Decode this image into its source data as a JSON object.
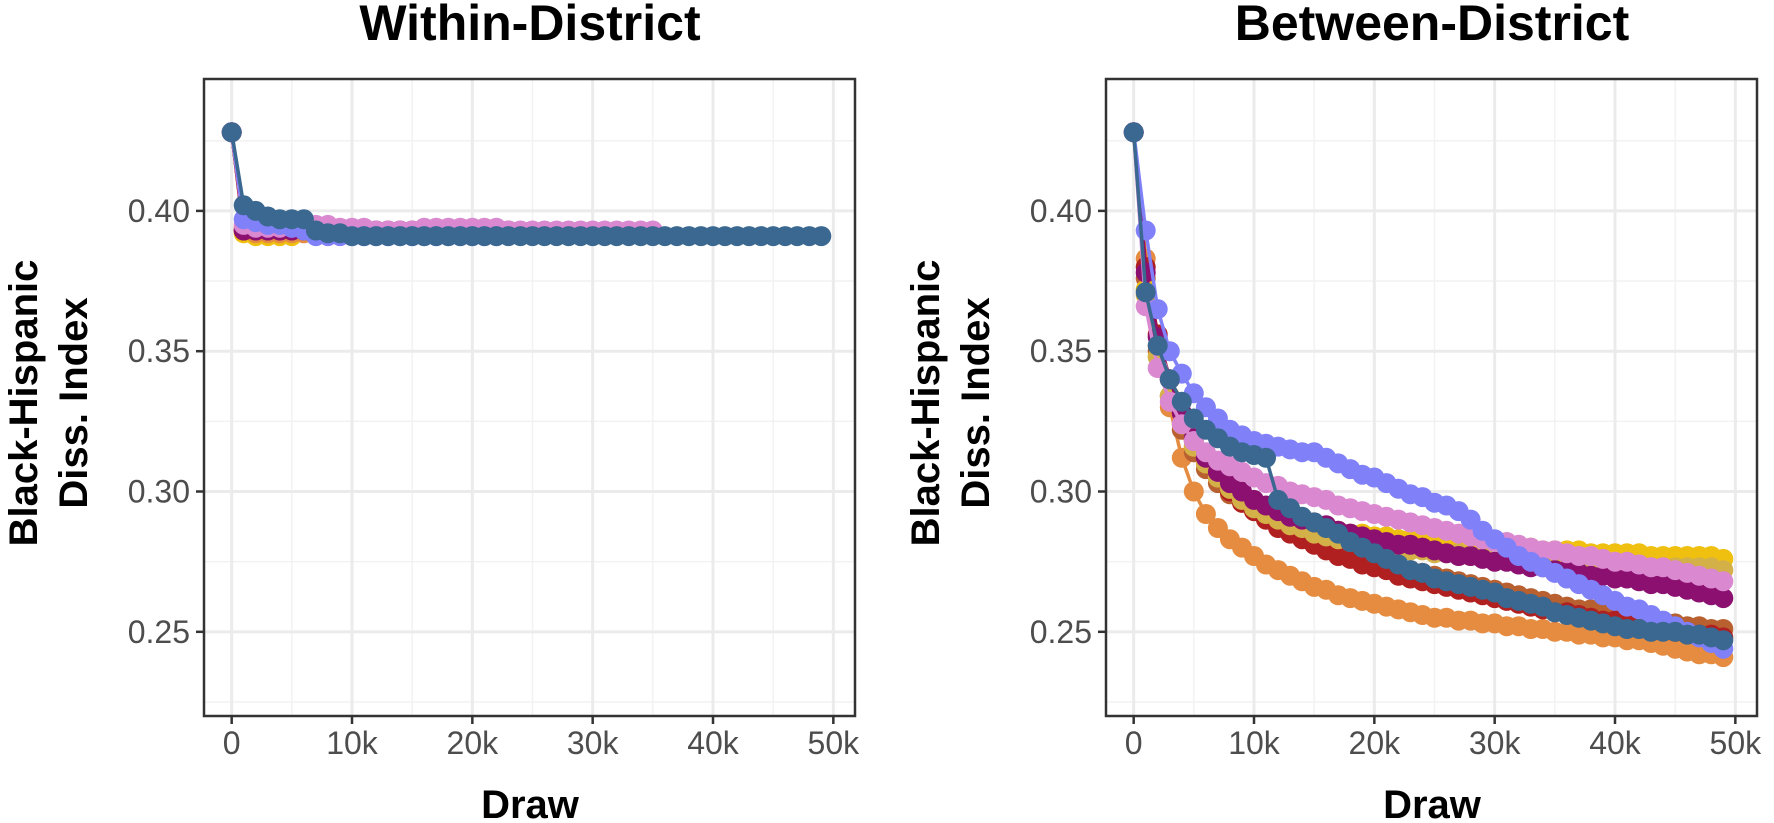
{
  "chart_data": [
    {
      "type": "line",
      "title": "Within-District",
      "xlabel": "Draw",
      "ylabel": [
        "Black-Hispanic",
        "Diss. Index"
      ],
      "xlim": [
        -2300,
        51800
      ],
      "ylim": [
        0.22,
        0.447
      ],
      "xticks": [
        0,
        10000,
        20000,
        30000,
        40000,
        50000
      ],
      "xtick_labels": [
        "0",
        "10k",
        "20k",
        "30k",
        "40k",
        "50k"
      ],
      "yticks": [
        0.25,
        0.3,
        0.35,
        0.4
      ],
      "ytick_labels": [
        "0.25",
        "0.30",
        "0.35",
        "0.40"
      ],
      "grid": true,
      "markers": true,
      "series": [
        {
          "color": "#F0C010",
          "x": [
            0,
            1000,
            2000,
            3000,
            4000,
            5000
          ],
          "values": [
            0.428,
            0.392,
            0.391,
            0.391,
            0.391,
            0.391
          ]
        },
        {
          "color": "#E58C40",
          "x": [
            0,
            1000,
            2000,
            3000,
            4000,
            5000,
            6000
          ],
          "values": [
            0.428,
            0.393,
            0.392,
            0.392,
            0.392,
            0.392,
            0.392
          ]
        },
        {
          "color": "#B02020",
          "x": [
            0,
            1000,
            2000,
            3000,
            4000
          ],
          "values": [
            0.428,
            0.393,
            0.393,
            0.393,
            0.393
          ]
        },
        {
          "color": "#B86030",
          "x": [
            0,
            1000,
            2000,
            3000,
            4000,
            5000
          ],
          "values": [
            0.428,
            0.394,
            0.393,
            0.393,
            0.393,
            0.393
          ]
        },
        {
          "color": "#8B1070",
          "x": [
            0,
            1000,
            2000,
            3000,
            4000,
            5000,
            6000,
            7000,
            8000,
            9000,
            10000,
            11000,
            12000,
            13000,
            14000,
            15000,
            16000,
            17000,
            18000,
            19000,
            20000,
            21000,
            22000,
            23000
          ],
          "values": [
            0.428,
            0.393,
            0.393,
            0.393,
            0.393,
            0.393,
            0.393,
            0.393,
            0.393,
            0.393,
            0.393,
            0.393,
            0.393,
            0.393,
            0.393,
            0.393,
            0.393,
            0.393,
            0.393,
            0.393,
            0.393,
            0.393,
            0.393,
            0.393
          ]
        },
        {
          "color": "#DA88D0",
          "x": [
            0,
            1000,
            2000,
            3000,
            4000,
            5000,
            6000,
            7000,
            8000,
            9000,
            10000,
            11000,
            12000,
            13000,
            14000,
            15000,
            16000,
            17000,
            18000,
            19000,
            20000,
            21000,
            22000,
            23000,
            24000,
            25000,
            26000,
            27000,
            28000,
            29000,
            30000,
            31000,
            32000,
            33000,
            34000,
            35000
          ],
          "values": [
            0.428,
            0.395,
            0.394,
            0.394,
            0.394,
            0.394,
            0.394,
            0.395,
            0.395,
            0.394,
            0.394,
            0.394,
            0.393,
            0.393,
            0.393,
            0.393,
            0.394,
            0.394,
            0.394,
            0.394,
            0.394,
            0.394,
            0.394,
            0.393,
            0.393,
            0.393,
            0.393,
            0.393,
            0.393,
            0.393,
            0.393,
            0.393,
            0.393,
            0.393,
            0.393,
            0.393
          ]
        },
        {
          "color": "#8080F8",
          "x": [
            0,
            1000,
            2000,
            3000,
            4000,
            5000,
            6000,
            7000,
            8000,
            9000,
            10000,
            11000,
            12000,
            13000,
            14000,
            15000,
            16000,
            17000,
            18000,
            19000,
            20000,
            21000,
            22000
          ],
          "values": [
            0.428,
            0.397,
            0.396,
            0.395,
            0.395,
            0.394,
            0.393,
            0.391,
            0.391,
            0.391,
            0.391,
            0.391,
            0.391,
            0.391,
            0.391,
            0.391,
            0.391,
            0.391,
            0.391,
            0.391,
            0.391,
            0.391,
            0.391
          ]
        },
        {
          "color": "#3A6890",
          "x": [
            0,
            1000,
            2000,
            3000,
            4000,
            5000,
            6000,
            7000,
            8000,
            9000,
            10000,
            11000,
            12000,
            13000,
            14000,
            15000,
            16000,
            17000,
            18000,
            19000,
            20000,
            21000,
            22000,
            23000,
            24000,
            25000,
            26000,
            27000,
            28000,
            29000,
            30000,
            31000,
            32000,
            33000,
            34000,
            35000,
            36000,
            37000,
            38000,
            39000,
            40000,
            41000,
            42000,
            43000,
            44000,
            45000,
            46000,
            47000,
            48000,
            49000
          ],
          "values": [
            0.428,
            0.402,
            0.4,
            0.398,
            0.397,
            0.397,
            0.397,
            0.393,
            0.392,
            0.392,
            0.391,
            0.391,
            0.391,
            0.391,
            0.391,
            0.391,
            0.391,
            0.391,
            0.391,
            0.391,
            0.391,
            0.391,
            0.391,
            0.391,
            0.391,
            0.391,
            0.391,
            0.391,
            0.391,
            0.391,
            0.391,
            0.391,
            0.391,
            0.391,
            0.391,
            0.391,
            0.391,
            0.391,
            0.391,
            0.391,
            0.391,
            0.391,
            0.391,
            0.391,
            0.391,
            0.391,
            0.391,
            0.391,
            0.391,
            0.391
          ]
        }
      ]
    },
    {
      "type": "line",
      "title": "Between-District",
      "xlabel": "Draw",
      "ylabel": [
        "Black-Hispanic",
        "Diss. Index"
      ],
      "xlim": [
        -2300,
        51800
      ],
      "ylim": [
        0.22,
        0.447
      ],
      "xticks": [
        0,
        10000,
        20000,
        30000,
        40000,
        50000
      ],
      "xtick_labels": [
        "0",
        "10k",
        "20k",
        "30k",
        "40k",
        "50k"
      ],
      "yticks": [
        0.25,
        0.3,
        0.35,
        0.4
      ],
      "ytick_labels": [
        "0.25",
        "0.30",
        "0.35",
        "0.40"
      ],
      "grid": true,
      "markers": true,
      "series": [
        {
          "color": "#E58C40",
          "curve": [
            0.428,
            0.383,
            0.352,
            0.33,
            0.312,
            0.3,
            0.292,
            0.287,
            0.283,
            0.28,
            0.277,
            0.274,
            0.272,
            0.27,
            0.268,
            0.266,
            0.265,
            0.263,
            0.262,
            0.261,
            0.26,
            0.259,
            0.258,
            0.257,
            0.256,
            0.255,
            0.255,
            0.254,
            0.254,
            0.253,
            0.253,
            0.252,
            0.252,
            0.251,
            0.251,
            0.25,
            0.25,
            0.249,
            0.249,
            0.248,
            0.248,
            0.247,
            0.247,
            0.246,
            0.245,
            0.244,
            0.243,
            0.242,
            0.242,
            0.241
          ]
        },
        {
          "color": "#B86030",
          "curve": [
            0.428,
            0.376,
            0.35,
            0.334,
            0.322,
            0.314,
            0.308,
            0.303,
            0.299,
            0.296,
            0.293,
            0.29,
            0.288,
            0.286,
            0.284,
            0.282,
            0.281,
            0.279,
            0.278,
            0.277,
            0.276,
            0.274,
            0.273,
            0.272,
            0.271,
            0.27,
            0.269,
            0.268,
            0.267,
            0.266,
            0.265,
            0.264,
            0.263,
            0.262,
            0.261,
            0.26,
            0.259,
            0.258,
            0.258,
            0.257,
            0.256,
            0.255,
            0.255,
            0.254,
            0.253,
            0.253,
            0.252,
            0.252,
            0.251,
            0.251
          ]
        },
        {
          "color": "#B02020",
          "curve": [
            0.428,
            0.38,
            0.356,
            0.34,
            0.328,
            0.318,
            0.311,
            0.305,
            0.3,
            0.296,
            0.293,
            0.29,
            0.287,
            0.285,
            0.283,
            0.281,
            0.279,
            0.277,
            0.276,
            0.274,
            0.273,
            0.272,
            0.27,
            0.269,
            0.268,
            0.267,
            0.266,
            0.265,
            0.264,
            0.263,
            0.262,
            0.261,
            0.26,
            0.259,
            0.258,
            0.257,
            0.257,
            0.256,
            0.255,
            0.254,
            0.254,
            0.253,
            0.252,
            0.252,
            0.251,
            0.25,
            0.25,
            0.249,
            0.249,
            0.248
          ]
        },
        {
          "color": "#F0C010",
          "curve": [
            0.428,
            0.372,
            0.348,
            0.334,
            0.324,
            0.316,
            0.31,
            0.305,
            0.301,
            0.298,
            0.295,
            0.293,
            0.291,
            0.29,
            0.289,
            0.288,
            0.287,
            0.286,
            0.285,
            0.285,
            0.284,
            0.284,
            0.283,
            0.283,
            0.282,
            0.282,
            0.282,
            0.281,
            0.281,
            0.281,
            0.28,
            0.28,
            0.28,
            0.28,
            0.279,
            0.279,
            0.279,
            0.279,
            0.278,
            0.278,
            0.278,
            0.278,
            0.278,
            0.277,
            0.277,
            0.277,
            0.277,
            0.277,
            0.277,
            0.276
          ]
        },
        {
          "color": "#D4B048",
          "curve": [
            0.428,
            0.37,
            0.348,
            0.334,
            0.324,
            0.316,
            0.31,
            0.305,
            0.301,
            0.297,
            0.294,
            0.292,
            0.29,
            0.288,
            0.287,
            0.285,
            0.284,
            0.283,
            0.282,
            0.282,
            0.281,
            0.28,
            0.28,
            0.279,
            0.279,
            0.278,
            0.278,
            0.278,
            0.277,
            0.277,
            0.277,
            0.276,
            0.276,
            0.276,
            0.275,
            0.275,
            0.275,
            0.275,
            0.274,
            0.274,
            0.274,
            0.274,
            0.274,
            0.273,
            0.273,
            0.273,
            0.273,
            0.273,
            0.273,
            0.272
          ]
        },
        {
          "color": "#8B1070",
          "curve": [
            0.428,
            0.378,
            0.355,
            0.34,
            0.328,
            0.319,
            0.312,
            0.307,
            0.303,
            0.3,
            0.297,
            0.295,
            0.293,
            0.291,
            0.29,
            0.289,
            0.288,
            0.286,
            0.285,
            0.284,
            0.283,
            0.282,
            0.281,
            0.281,
            0.28,
            0.279,
            0.278,
            0.277,
            0.277,
            0.276,
            0.275,
            0.275,
            0.274,
            0.273,
            0.273,
            0.272,
            0.272,
            0.271,
            0.27,
            0.27,
            0.269,
            0.269,
            0.268,
            0.267,
            0.267,
            0.266,
            0.265,
            0.264,
            0.263,
            0.262
          ]
        },
        {
          "color": "#DA88D0",
          "curve": [
            0.428,
            0.366,
            0.344,
            0.332,
            0.324,
            0.318,
            0.314,
            0.311,
            0.309,
            0.307,
            0.305,
            0.303,
            0.302,
            0.3,
            0.299,
            0.298,
            0.297,
            0.295,
            0.294,
            0.293,
            0.292,
            0.291,
            0.29,
            0.289,
            0.288,
            0.287,
            0.286,
            0.285,
            0.284,
            0.283,
            0.282,
            0.282,
            0.281,
            0.28,
            0.279,
            0.279,
            0.278,
            0.277,
            0.277,
            0.276,
            0.275,
            0.275,
            0.274,
            0.273,
            0.273,
            0.272,
            0.271,
            0.27,
            0.269,
            0.268
          ]
        },
        {
          "color": "#8080F8",
          "curve": [
            0.428,
            0.393,
            0.365,
            0.35,
            0.342,
            0.335,
            0.33,
            0.326,
            0.322,
            0.32,
            0.318,
            0.317,
            0.316,
            0.315,
            0.314,
            0.314,
            0.312,
            0.31,
            0.308,
            0.306,
            0.305,
            0.303,
            0.301,
            0.299,
            0.298,
            0.296,
            0.295,
            0.293,
            0.29,
            0.286,
            0.283,
            0.28,
            0.277,
            0.275,
            0.273,
            0.271,
            0.269,
            0.267,
            0.265,
            0.263,
            0.261,
            0.259,
            0.258,
            0.256,
            0.254,
            0.252,
            0.25,
            0.248,
            0.246,
            0.244
          ]
        },
        {
          "color": "#3A6890",
          "curve": [
            0.428,
            0.371,
            0.352,
            0.34,
            0.332,
            0.326,
            0.322,
            0.319,
            0.316,
            0.314,
            0.313,
            0.312,
            0.297,
            0.294,
            0.291,
            0.289,
            0.287,
            0.285,
            0.282,
            0.28,
            0.278,
            0.276,
            0.274,
            0.272,
            0.271,
            0.269,
            0.268,
            0.267,
            0.266,
            0.265,
            0.264,
            0.262,
            0.261,
            0.26,
            0.259,
            0.257,
            0.256,
            0.255,
            0.254,
            0.253,
            0.252,
            0.251,
            0.251,
            0.25,
            0.25,
            0.25,
            0.249,
            0.249,
            0.248,
            0.247
          ]
        }
      ]
    }
  ]
}
